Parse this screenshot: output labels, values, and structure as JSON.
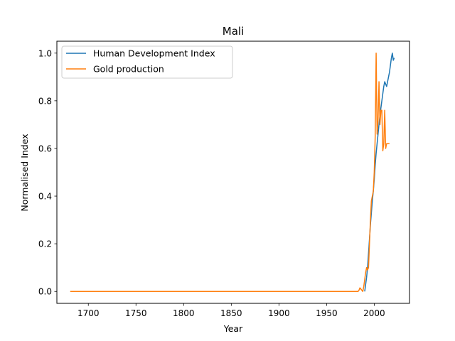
{
  "chart_data": {
    "type": "line",
    "title": "Mali",
    "xlabel": "Year",
    "ylabel": "Normalised Index",
    "xlim": [
      1667,
      2037
    ],
    "ylim": [
      -0.05,
      1.05
    ],
    "x_ticks": [
      1700,
      1750,
      1800,
      1850,
      1900,
      1950,
      2000
    ],
    "y_ticks": [
      0.0,
      0.2,
      0.4,
      0.6,
      0.8,
      1.0
    ],
    "grid": false,
    "legend_position": "top-left",
    "series": [
      {
        "name": "Human Development Index",
        "color": "#1f77b4",
        "x": [
          1990,
          1991,
          1992,
          1993,
          1994,
          1995,
          1996,
          1997,
          1998,
          1999,
          2000,
          2001,
          2002,
          2003,
          2004,
          2005,
          2006,
          2007,
          2008,
          2009,
          2010,
          2011,
          2012,
          2013,
          2014,
          2015,
          2016,
          2017,
          2018,
          2019,
          2020,
          2021
        ],
        "y": [
          0.0,
          0.03,
          0.06,
          0.1,
          0.16,
          0.22,
          0.28,
          0.33,
          0.38,
          0.42,
          0.47,
          0.53,
          0.58,
          0.62,
          0.66,
          0.7,
          0.74,
          0.77,
          0.8,
          0.83,
          0.86,
          0.88,
          0.87,
          0.86,
          0.88,
          0.9,
          0.92,
          0.95,
          0.98,
          1.0,
          0.97,
          0.98
        ]
      },
      {
        "name": "Gold production",
        "color": "#ff7f0e",
        "x": [
          1681,
          1700,
          1750,
          1800,
          1850,
          1900,
          1950,
          1983,
          1984,
          1985,
          1986,
          1987,
          1988,
          1989,
          1990,
          1991,
          1992,
          1993,
          1994,
          1995,
          1996,
          1997,
          1998,
          1999,
          2000,
          2001,
          2002,
          2003,
          2004,
          2005,
          2006,
          2007,
          2008,
          2009,
          2010,
          2011,
          2012,
          2013,
          2014,
          2015,
          2016
        ],
        "y": [
          0.0,
          0.0,
          0.0,
          0.0,
          0.0,
          0.0,
          0.0,
          0.0,
          0.005,
          0.015,
          0.01,
          0.005,
          0.0,
          0.02,
          0.05,
          0.08,
          0.1,
          0.09,
          0.1,
          0.2,
          0.3,
          0.38,
          0.4,
          0.42,
          0.5,
          0.65,
          1.0,
          0.66,
          0.72,
          0.88,
          0.7,
          0.76,
          0.76,
          0.59,
          0.62,
          0.76,
          0.6,
          0.62,
          0.62,
          0.62,
          0.62
        ]
      }
    ]
  }
}
